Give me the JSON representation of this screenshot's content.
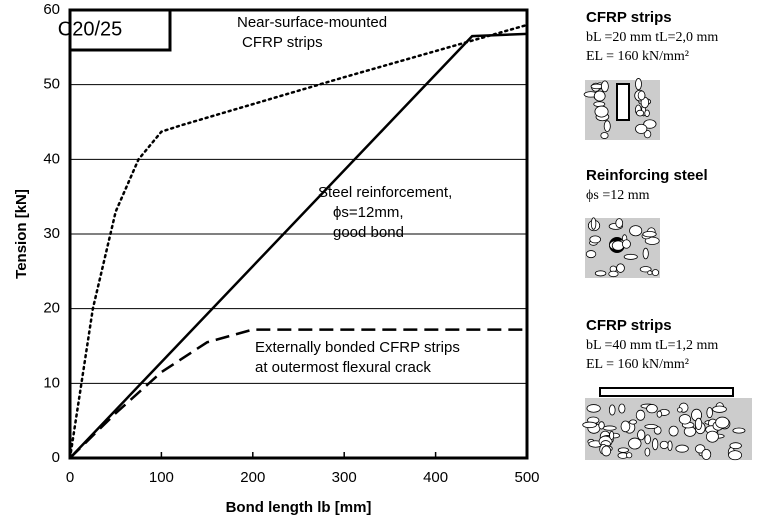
{
  "chart_data": {
    "type": "line",
    "xlabel": "Bond length lb [mm]",
    "ylabel": "Tension [kN]",
    "xlim": [
      0,
      500
    ],
    "xticks": [
      0,
      100,
      200,
      300,
      400,
      500
    ],
    "ylim": [
      0,
      60
    ],
    "yticks": [
      0,
      10,
      20,
      30,
      40,
      50,
      60
    ],
    "grid": true,
    "series": [
      {
        "color": "#000000",
        "dash": "dotted",
        "x": [
          0,
          10,
          25,
          50,
          75,
          100,
          120,
          300,
          500
        ],
        "values": [
          0,
          8,
          20,
          33,
          40,
          43.7,
          44.5,
          51,
          58
        ]
      },
      {
        "color": "#000000",
        "dash": "solid",
        "x": [
          0,
          440,
          500
        ],
        "values": [
          0,
          56.5,
          56.8
        ]
      },
      {
        "color": "#000000",
        "dash": "dashed",
        "x": [
          0,
          50,
          100,
          150,
          200,
          500
        ],
        "values": [
          0,
          6,
          11.5,
          15.5,
          17.2,
          17.2
        ]
      }
    ],
    "annotations": [
      {
        "lines": [
          "C20/25"
        ]
      },
      {
        "lines": [
          "Near-surface-mounted",
          "CFRP strips"
        ]
      },
      {
        "lines": [
          "Steel reinforcement,",
          "ϕs=12mm,",
          "good bond"
        ]
      },
      {
        "lines": [
          "Externally bonded CFRP strips",
          "at outermost flexural crack"
        ]
      }
    ]
  },
  "side_panel": [
    {
      "title": "CFRP strips",
      "lines": [
        "bL =20 mm tL=2,0 mm",
        "EL = 160 kN/mm²"
      ]
    },
    {
      "title": "Reinforcing steel",
      "lines": [
        "ϕs =12 mm"
      ]
    },
    {
      "title": "CFRP strips",
      "lines": [
        "bL =40 mm tL=1,2 mm",
        "EL = 160 kN/mm²"
      ]
    }
  ]
}
